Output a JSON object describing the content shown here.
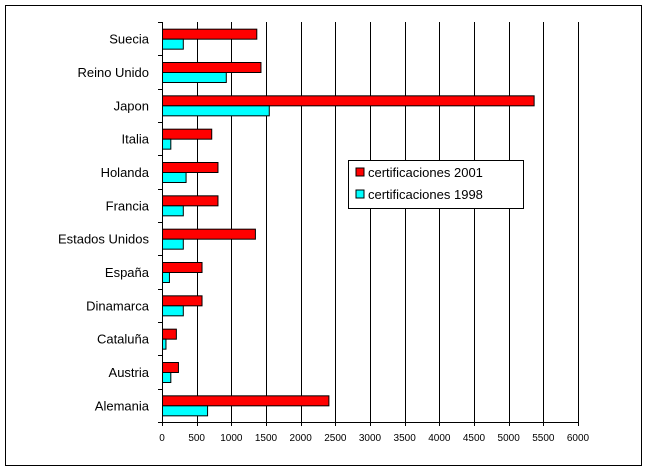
{
  "chart_data": {
    "type": "bar",
    "orientation": "horizontal",
    "categories": [
      "Suecia",
      "Reino Unido",
      "Japon",
      "Italia",
      "Holanda",
      "Francia",
      "Estados Unidos",
      "España",
      "Dinamarca",
      "Cataluña",
      "Austria",
      "Alemania"
    ],
    "series": [
      {
        "name": "certificaciones 2001",
        "color": "#ff0000",
        "values": [
          1360,
          1420,
          5360,
          710,
          800,
          800,
          1340,
          570,
          570,
          200,
          230,
          2400
        ]
      },
      {
        "name": "certificaciones 1998",
        "color": "#00ffff",
        "values": [
          300,
          920,
          1540,
          120,
          340,
          300,
          300,
          100,
          300,
          50,
          120,
          650
        ]
      }
    ],
    "xlim": [
      0,
      6000
    ],
    "xticks": [
      "0",
      "500",
      "1000",
      "1500",
      "2000",
      "2500",
      "3000",
      "3500",
      "4000",
      "4500",
      "5000",
      "5500",
      "6000"
    ],
    "grid": "vertical",
    "legend_position": "right",
    "title": "",
    "xlabel": "",
    "ylabel": ""
  }
}
